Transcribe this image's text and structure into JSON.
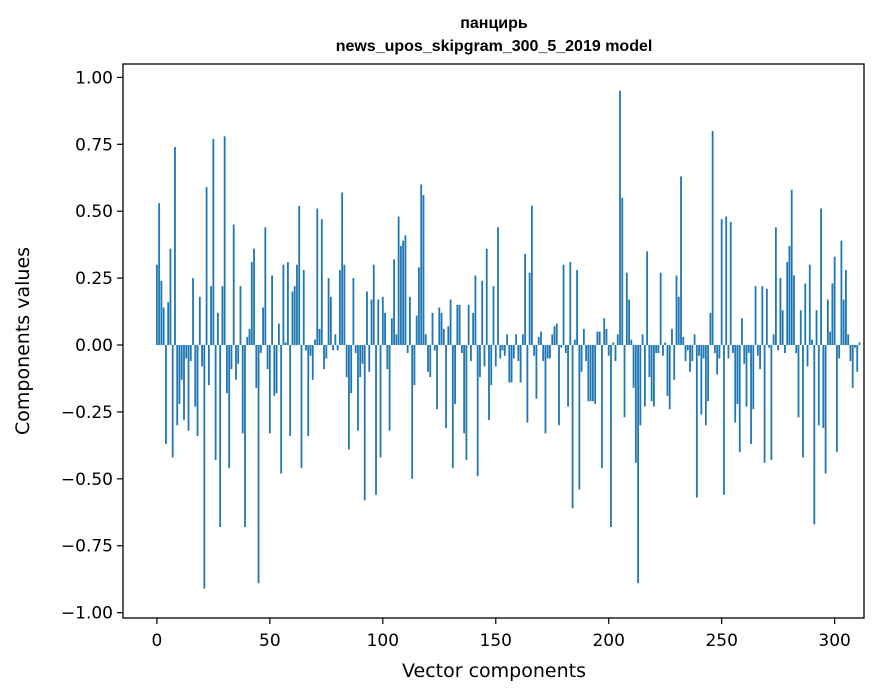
{
  "chart_data": {
    "type": "bar",
    "title": "панцирь",
    "subtitle": "news_upos_skipgram_300_5_2019 model",
    "xlabel": "Vector components",
    "ylabel": "Components values",
    "xlim": [
      -15,
      313
    ],
    "ylim": [
      -1.02,
      1.05
    ],
    "xticks": [
      0,
      50,
      100,
      150,
      200,
      250,
      300
    ],
    "xtick_labels": [
      "0",
      "50",
      "100",
      "150",
      "200",
      "250",
      "300"
    ],
    "yticks": [
      1.0,
      0.75,
      0.5,
      0.25,
      0.0,
      -0.25,
      -0.5,
      -0.75,
      -1.0
    ],
    "ytick_labels": [
      "1.00",
      "0.75",
      "0.50",
      "0.25",
      "0.00",
      "−0.25",
      "−0.50",
      "−0.75",
      "−1.00"
    ],
    "grid": false,
    "bar_color": "#1f77b4",
    "values": [
      0.3,
      0.53,
      0.24,
      0.14,
      -0.37,
      0.16,
      0.36,
      -0.42,
      0.74,
      -0.3,
      -0.22,
      -0.13,
      -0.28,
      -0.05,
      -0.32,
      -0.06,
      0.25,
      -0.23,
      -0.34,
      0.18,
      -0.08,
      -0.91,
      0.59,
      -0.15,
      0.22,
      0.77,
      -0.43,
      0.12,
      -0.68,
      0.22,
      0.78,
      -0.18,
      -0.46,
      -0.09,
      0.45,
      -0.13,
      -0.07,
      0.22,
      -0.33,
      -0.68,
      0.03,
      0.06,
      0.31,
      0.36,
      -0.16,
      -0.89,
      -0.03,
      0.14,
      0.44,
      -0.09,
      -0.33,
      0.26,
      -0.19,
      -0.18,
      0.08,
      -0.48,
      0.3,
      0.01,
      0.31,
      -0.34,
      0.2,
      0.22,
      0.3,
      0.52,
      -0.46,
      0.28,
      -0.02,
      -0.34,
      -0.04,
      -0.13,
      0.02,
      0.51,
      0.06,
      0.47,
      -0.09,
      -0.05,
      0.25,
      0.18,
      -0.02,
      0.04,
      -0.02,
      0.28,
      0.57,
      0.3,
      -0.12,
      -0.39,
      -0.18,
      0.25,
      -0.03,
      -0.32,
      -0.12,
      -0.07,
      -0.58,
      0.2,
      -0.1,
      0.17,
      0.3,
      -0.56,
      0.17,
      -0.42,
      0.18,
      0.12,
      -0.09,
      -0.32,
      0.1,
      0.32,
      0.04,
      0.48,
      0.37,
      0.39,
      0.41,
      -0.03,
      0.18,
      -0.5,
      -0.15,
      0.11,
      0.29,
      0.6,
      0.56,
      0.04,
      -0.1,
      -0.12,
      0.12,
      -0.02,
      -0.24,
      0.14,
      0.12,
      0.06,
      -0.31,
      0.07,
      0.17,
      -0.46,
      -0.22,
      0.15,
      0.15,
      -0.03,
      -0.33,
      -0.43,
      0.15,
      -0.06,
      0.12,
      0.26,
      -0.49,
      -0.12,
      0.24,
      -0.08,
      0.36,
      -0.28,
      -0.15,
      0.22,
      -0.08,
      0.44,
      -0.05,
      -0.02,
      -0.04,
      0.04,
      -0.14,
      -0.14,
      -0.05,
      0.04,
      -0.06,
      -0.14,
      0.04,
      0.34,
      -0.29,
      0.27,
      0.52,
      -0.04,
      -0.2,
      0.03,
      0.05,
      -0.06,
      -0.33,
      -0.05,
      -0.05,
      0.04,
      0.07,
      0.08,
      -0.3,
      -0.01,
      0.3,
      -0.03,
      -0.23,
      0.31,
      -0.61,
      0.02,
      0.28,
      -0.54,
      -0.1,
      0.06,
      -0.06,
      -0.21,
      -0.21,
      -0.21,
      -0.22,
      0.05,
      0.05,
      -0.46,
      0.1,
      0.06,
      -0.04,
      -0.68,
      0.01,
      -0.06,
      0.04,
      0.95,
      0.55,
      -0.27,
      0.27,
      0.17,
      0.02,
      -0.16,
      -0.44,
      -0.89,
      -0.3,
      0.04,
      -0.23,
      0.35,
      -0.12,
      -0.21,
      -0.23,
      -0.03,
      -0.03,
      0.27,
      -0.04,
      0.01,
      -0.19,
      -0.24,
      0.06,
      -0.13,
      0.26,
      0.18,
      0.63,
      0.03,
      -0.06,
      -0.02,
      -0.1,
      -0.06,
      0.04,
      -0.57,
      -0.04,
      -0.26,
      -0.05,
      -0.3,
      -0.21,
      0.12,
      0.8,
      -0.03,
      -0.11,
      -0.05,
      0.47,
      -0.56,
      0.48,
      -0.05,
      0.46,
      -0.03,
      -0.29,
      -0.22,
      -0.4,
      0.1,
      -0.07,
      -0.23,
      -0.03,
      -0.37,
      -0.24,
      0.22,
      -0.04,
      -0.09,
      0.22,
      -0.44,
      0.21,
      -0.01,
      -0.43,
      0.04,
      0.44,
      -0.02,
      0.25,
      0.13,
      -0.03,
      0.31,
      0.37,
      0.58,
      0.26,
      -0.03,
      -0.27,
      0.13,
      -0.42,
      0.23,
      -0.08,
      0.3,
      0.02,
      -0.67,
      0.13,
      -0.3,
      0.51,
      -0.31,
      -0.48,
      0.17,
      0.05,
      0.23,
      0.33,
      -0.4,
      -0.05,
      0.39,
      0.17,
      0.28,
      0.04,
      -0.06,
      -0.16,
      -0.01,
      -0.1,
      0.01
    ]
  }
}
